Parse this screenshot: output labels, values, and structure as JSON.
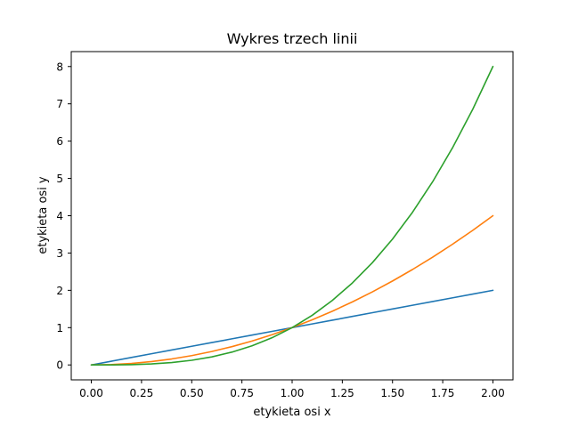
{
  "chart_data": {
    "type": "line",
    "title": "Wykres trzech linii",
    "xlabel": "etykieta osi x",
    "ylabel": "etykieta osi y",
    "xlim": [
      -0.1,
      2.1
    ],
    "ylim": [
      -0.4,
      8.4
    ],
    "xticks": [
      0.0,
      0.25,
      0.5,
      0.75,
      1.0,
      1.25,
      1.5,
      1.75,
      2.0
    ],
    "xtick_labels": [
      "0.00",
      "0.25",
      "0.50",
      "0.75",
      "1.00",
      "1.25",
      "1.50",
      "1.75",
      "2.00"
    ],
    "yticks": [
      0,
      1,
      2,
      3,
      4,
      5,
      6,
      7,
      8
    ],
    "ytick_labels": [
      "0",
      "1",
      "2",
      "3",
      "4",
      "5",
      "6",
      "7",
      "8"
    ],
    "grid": false,
    "x": [
      0.0,
      0.1,
      0.2,
      0.3,
      0.4,
      0.5,
      0.6,
      0.7,
      0.8,
      0.9,
      1.0,
      1.1,
      1.2,
      1.3,
      1.4,
      1.5,
      1.6,
      1.7,
      1.8,
      1.9,
      2.0
    ],
    "series": [
      {
        "color": "#1f77b4",
        "values": [
          0.0,
          0.1,
          0.2,
          0.3,
          0.4,
          0.5,
          0.6,
          0.7,
          0.8,
          0.9,
          1.0,
          1.1,
          1.2,
          1.3,
          1.4,
          1.5,
          1.6,
          1.7,
          1.8,
          1.9,
          2.0
        ]
      },
      {
        "color": "#ff7f0e",
        "values": [
          0.0,
          0.01,
          0.04,
          0.09,
          0.16,
          0.25,
          0.36,
          0.49,
          0.64,
          0.81,
          1.0,
          1.21,
          1.44,
          1.69,
          1.96,
          2.25,
          2.56,
          2.89,
          3.24,
          3.61,
          4.0
        ]
      },
      {
        "color": "#2ca02c",
        "values": [
          0.0,
          0.001,
          0.008,
          0.027,
          0.064,
          0.125,
          0.216,
          0.343,
          0.512,
          0.729,
          1.0,
          1.331,
          1.728,
          2.197,
          2.744,
          3.375,
          4.096,
          4.913,
          5.832,
          6.859,
          8.0
        ]
      }
    ]
  }
}
